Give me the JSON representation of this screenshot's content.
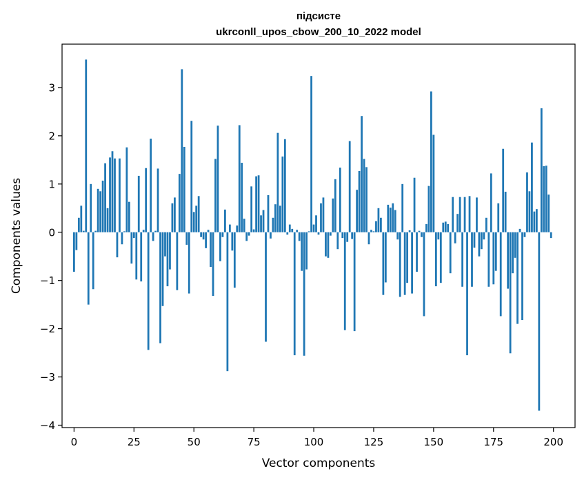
{
  "chart_data": {
    "type": "bar",
    "title_line1": "підсисте",
    "title_line2": "ukrconll_upos_cbow_200_10_2022 model",
    "xlabel": "Vector components",
    "ylabel": "Components values",
    "xlim": [
      -5,
      209
    ],
    "ylim": [
      -4.05,
      3.9
    ],
    "xticks": [
      0,
      25,
      50,
      75,
      100,
      125,
      150,
      175,
      200
    ],
    "yticks": [
      -4,
      -3,
      -2,
      -1,
      0,
      1,
      2,
      3
    ],
    "ytick_labels": [
      "−4",
      "−3",
      "−2",
      "−1",
      "0",
      "1",
      "2",
      "3"
    ],
    "bar_color": "#1f77b4",
    "grid": false,
    "legend": "none",
    "values": [
      -0.82,
      -0.37,
      0.3,
      0.55,
      0.03,
      3.58,
      -1.5,
      1.0,
      -1.18,
      0.03,
      0.9,
      0.85,
      1.07,
      1.43,
      0.5,
      1.55,
      1.68,
      1.53,
      -0.52,
      1.53,
      -0.25,
      0.02,
      1.76,
      0.63,
      -0.65,
      -0.12,
      -0.98,
      1.17,
      -1.02,
      0.05,
      1.33,
      -2.44,
      1.94,
      -0.18,
      0.03,
      1.32,
      -2.3,
      -1.53,
      -0.5,
      -1.12,
      -0.77,
      0.6,
      0.72,
      -1.2,
      1.21,
      3.38,
      1.77,
      -0.26,
      -1.27,
      2.31,
      0.42,
      0.55,
      0.75,
      -0.1,
      -0.15,
      -0.33,
      0.05,
      -0.72,
      -1.32,
      1.52,
      2.21,
      -0.6,
      -0.1,
      0.47,
      -2.88,
      0.16,
      -0.38,
      -1.15,
      0.14,
      2.22,
      1.44,
      0.28,
      -0.18,
      -0.07,
      0.95,
      0.06,
      1.16,
      1.18,
      0.35,
      0.46,
      -2.27,
      0.77,
      -0.13,
      0.3,
      0.58,
      2.06,
      0.55,
      1.57,
      1.93,
      -0.05,
      0.16,
      0.07,
      -2.55,
      0.05,
      -0.18,
      -0.8,
      -2.56,
      -0.77,
      0.02,
      3.24,
      0.16,
      0.35,
      -0.05,
      0.6,
      0.72,
      -0.5,
      -0.53,
      -0.07,
      0.7,
      1.1,
      -0.35,
      1.34,
      -0.12,
      -2.03,
      -0.2,
      1.89,
      -0.14,
      -2.05,
      0.88,
      1.27,
      2.41,
      1.52,
      1.35,
      -0.25,
      0.05,
      0.02,
      0.23,
      0.5,
      0.3,
      -1.3,
      -1.04,
      0.57,
      0.51,
      0.6,
      0.46,
      -0.15,
      -1.34,
      1.0,
      -1.3,
      -1.05,
      0.04,
      -1.27,
      1.13,
      -0.82,
      0.03,
      -0.1,
      -1.74,
      0.17,
      0.96,
      2.92,
      2.02,
      -1.12,
      -0.15,
      -1.05,
      0.2,
      0.22,
      0.17,
      -0.85,
      0.73,
      -0.23,
      0.38,
      0.73,
      -1.13,
      0.73,
      -2.55,
      0.75,
      -1.13,
      -0.32,
      0.72,
      -0.5,
      -0.35,
      -0.15,
      0.3,
      -1.13,
      1.22,
      -1.08,
      -0.8,
      0.6,
      -1.74,
      1.73,
      0.84,
      -1.17,
      -2.51,
      -0.85,
      -0.53,
      -1.9,
      0.07,
      -1.82,
      -0.1,
      1.24,
      0.85,
      1.86,
      0.43,
      0.48,
      -3.7,
      2.57,
      1.37,
      1.38,
      0.78,
      -0.12
    ]
  }
}
